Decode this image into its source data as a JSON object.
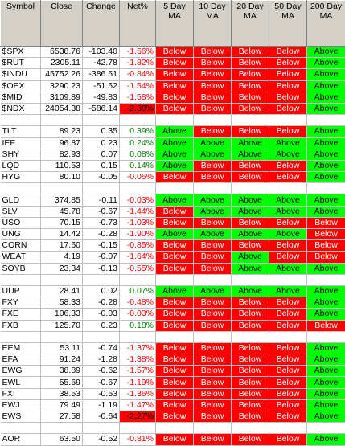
{
  "headers": [
    "Symbol",
    "Close",
    "Change",
    "Net%",
    "5 Day MA",
    "10 Day MA",
    "20 Day MA",
    "50 Day MA",
    "200 Day MA"
  ],
  "groups": [
    [
      [
        "$SPX",
        "6538.76",
        "-103.40",
        "-1.56%",
        "Below",
        "Below",
        "Below",
        "Below",
        "Above"
      ],
      [
        "$RUT",
        "2305.11",
        "-42.78",
        "-1.82%",
        "Below",
        "Below",
        "Below",
        "Below",
        "Above"
      ],
      [
        "$INDU",
        "45752.26",
        "-386.51",
        "-0.84%",
        "Below",
        "Below",
        "Below",
        "Below",
        "Above"
      ],
      [
        "$OEX",
        "3290.23",
        "-51.52",
        "-1.54%",
        "Below",
        "Below",
        "Below",
        "Below",
        "Above"
      ],
      [
        "$MID",
        "3109.89",
        "-49.83",
        "-1.58%",
        "Below",
        "Below",
        "Below",
        "Below",
        "Above"
      ],
      [
        "$NDX",
        "24054.38",
        "-586.14",
        "-2.38%",
        "Below",
        "Below",
        "Below",
        "Below",
        "Above"
      ]
    ],
    [
      [
        "TLT",
        "89.23",
        "0.35",
        "0.39%",
        "Above",
        "Below",
        "Below",
        "Below",
        "Above"
      ],
      [
        "IEF",
        "96.87",
        "0.23",
        "0.24%",
        "Above",
        "Above",
        "Above",
        "Above",
        "Above"
      ],
      [
        "SHY",
        "82.93",
        "0.07",
        "0.08%",
        "Above",
        "Above",
        "Above",
        "Above",
        "Above"
      ],
      [
        "LQD",
        "110.53",
        "0.15",
        "0.14%",
        "Above",
        "Below",
        "Below",
        "Below",
        "Above"
      ],
      [
        "HYG",
        "80.10",
        "-0.05",
        "-0.06%",
        "Below",
        "Below",
        "Below",
        "Below",
        "Above"
      ]
    ],
    [
      [
        "GLD",
        "374.85",
        "-0.11",
        "-0.03%",
        "Above",
        "Above",
        "Above",
        "Above",
        "Above"
      ],
      [
        "SLV",
        "45.78",
        "-0.67",
        "-1.44%",
        "Below",
        "Above",
        "Above",
        "Above",
        "Above"
      ],
      [
        "USO",
        "70.15",
        "-0.73",
        "-1.03%",
        "Below",
        "Below",
        "Below",
        "Below",
        "Below"
      ],
      [
        "UNG",
        "14.42",
        "-0.28",
        "-1.90%",
        "Above",
        "Above",
        "Above",
        "Above",
        "Below"
      ],
      [
        "CORN",
        "17.60",
        "-0.15",
        "-0.85%",
        "Below",
        "Below",
        "Below",
        "Below",
        "Below"
      ],
      [
        "WEAT",
        "4.19",
        "-0.07",
        "-1.64%",
        "Below",
        "Below",
        "Above",
        "Below",
        "Below"
      ],
      [
        "SOYB",
        "23.34",
        "-0.13",
        "-0.55%",
        "Below",
        "Below",
        "Above",
        "Above",
        "Above"
      ]
    ],
    [
      [
        "UUP",
        "28.41",
        "0.02",
        "0.07%",
        "Above",
        "Above",
        "Above",
        "Above",
        "Above"
      ],
      [
        "FXY",
        "58.33",
        "-0.28",
        "-0.48%",
        "Below",
        "Below",
        "Below",
        "Below",
        "Above"
      ],
      [
        "FXE",
        "106.33",
        "-0.03",
        "-0.03%",
        "Below",
        "Below",
        "Below",
        "Below",
        "Above"
      ],
      [
        "FXB",
        "125.70",
        "0.23",
        "0.18%",
        "Below",
        "Below",
        "Below",
        "Below",
        "Below"
      ]
    ],
    [
      [
        "EEM",
        "53.11",
        "-0.74",
        "-1.37%",
        "Below",
        "Below",
        "Below",
        "Below",
        "Above"
      ],
      [
        "EFA",
        "91.24",
        "-1.28",
        "-1.38%",
        "Below",
        "Below",
        "Below",
        "Below",
        "Above"
      ],
      [
        "EWG",
        "38.89",
        "-0.62",
        "-1.57%",
        "Below",
        "Below",
        "Below",
        "Below",
        "Above"
      ],
      [
        "EWL",
        "55.69",
        "-0.67",
        "-1.19%",
        "Below",
        "Below",
        "Below",
        "Below",
        "Above"
      ],
      [
        "FXI",
        "38.53",
        "-0.53",
        "-1.36%",
        "Below",
        "Below",
        "Below",
        "Below",
        "Above"
      ],
      [
        "EWJ",
        "79.49",
        "-1.19",
        "-1.47%",
        "Below",
        "Below",
        "Below",
        "Below",
        "Above"
      ],
      [
        "EWS",
        "27.58",
        "-0.64",
        "-2.27%",
        "Below",
        "Below",
        "Below",
        "Below",
        "Above"
      ]
    ],
    [
      [
        "AOR",
        "63.50",
        "-0.52",
        "-0.81%",
        "Below",
        "Below",
        "Below",
        "Below",
        "Above"
      ]
    ]
  ],
  "highlighted_net": [
    "$NDX",
    "EWS"
  ],
  "colors": {
    "header_bg": "#d4d0c8",
    "below_bg": "#ff0000",
    "above_bg": "#00ff00",
    "positive_text": "#008000",
    "negative_text": "#ff0000"
  }
}
